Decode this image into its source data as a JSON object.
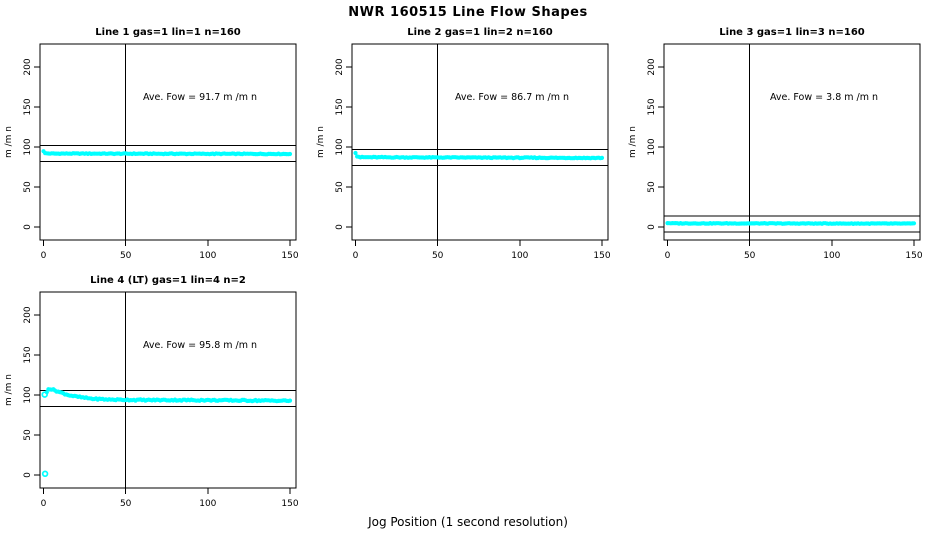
{
  "page": {
    "title": "NWR  160515  Line Flow Shapes",
    "xlabel": "Jog Position (1 second resolution)",
    "background": "#ffffff",
    "axis_color": "#000000",
    "point_color": "#00ffff"
  },
  "chart_data": [
    {
      "type": "scatter",
      "title": "Line 1 gas=1 lin=1 n=160",
      "annotation": "Ave. Fow =  91.7  m /m n",
      "ave_flow": 91.7,
      "n": 160,
      "ylabel": "m /m n",
      "xticks": [
        0,
        50,
        100,
        150
      ],
      "yticks": [
        0,
        50,
        100,
        150,
        200
      ],
      "xlim": [
        -6,
        156
      ],
      "ylim": [
        -16,
        229
      ],
      "vline_x": 50,
      "hlines": [
        101.7,
        81.7
      ],
      "x_range": [
        0,
        150
      ],
      "x_step": 1,
      "profile": [
        [
          0,
          95
        ],
        [
          1,
          92.2
        ],
        [
          4,
          91.8
        ],
        [
          150,
          91.3
        ]
      ],
      "outliers": [],
      "jitter": 0.45,
      "point_color": "#00ffff"
    },
    {
      "type": "scatter",
      "title": "Line 2 gas=1 lin=2 n=160",
      "annotation": "Ave. Fow =  86.7  m /m n",
      "ave_flow": 86.7,
      "n": 160,
      "ylabel": "m /m n",
      "xticks": [
        0,
        50,
        100,
        150
      ],
      "yticks": [
        0,
        50,
        100,
        150,
        200
      ],
      "xlim": [
        -6,
        156
      ],
      "ylim": [
        -16,
        229
      ],
      "vline_x": 50,
      "hlines": [
        96.7,
        76.7
      ],
      "x_range": [
        0,
        150
      ],
      "x_step": 1,
      "profile": [
        [
          0,
          93
        ],
        [
          1,
          88.5
        ],
        [
          3,
          87.2
        ],
        [
          150,
          86.3
        ]
      ],
      "outliers": [],
      "jitter": 0.5,
      "point_color": "#00ffff"
    },
    {
      "type": "scatter",
      "title": "Line 3 gas=1 lin=3 n=160",
      "annotation": "Ave. Fow =  3.8  m /m n",
      "ave_flow": 3.8,
      "n": 160,
      "ylabel": "m /m n",
      "xticks": [
        0,
        50,
        100,
        150
      ],
      "yticks": [
        0,
        50,
        100,
        150,
        200
      ],
      "xlim": [
        -6,
        156
      ],
      "ylim": [
        -16,
        229
      ],
      "vline_x": 50,
      "hlines": [
        13.8,
        -6.2
      ],
      "x_range": [
        0,
        150
      ],
      "x_step": 1,
      "profile": [
        [
          0,
          5.0
        ],
        [
          3,
          4.6
        ],
        [
          150,
          4.2
        ]
      ],
      "outliers": [],
      "jitter": 0.4,
      "point_color": "#00ffff"
    },
    {
      "type": "scatter",
      "title": "Line 4 (LT) gas=1 lin=4 n=2",
      "annotation": "Ave. Fow =  95.8  m /m n",
      "ave_flow": 95.8,
      "n": 2,
      "ylabel": "m /m n",
      "xticks": [
        0,
        50,
        100,
        150
      ],
      "yticks": [
        0,
        50,
        100,
        150,
        200
      ],
      "xlim": [
        -6,
        156
      ],
      "ylim": [
        -16,
        229
      ],
      "vline_x": 50,
      "hlines": [
        105.8,
        85.8
      ],
      "x_range": [
        2,
        150
      ],
      "x_step": 1,
      "profile": [
        [
          2,
          103.5
        ],
        [
          3,
          108
        ],
        [
          4,
          107.5
        ],
        [
          6,
          106.5
        ],
        [
          8,
          105
        ],
        [
          12,
          102
        ],
        [
          16,
          99.5
        ],
        [
          20,
          98
        ],
        [
          25,
          96.5
        ],
        [
          30,
          95.3
        ],
        [
          40,
          94.3
        ],
        [
          60,
          93.7
        ],
        [
          90,
          93.6
        ],
        [
          120,
          93.2
        ],
        [
          150,
          92.8
        ]
      ],
      "outliers": [
        [
          1,
          1.5
        ],
        [
          0.7,
          100.5
        ]
      ],
      "jitter": 0.8,
      "point_color": "#00ffff"
    }
  ]
}
